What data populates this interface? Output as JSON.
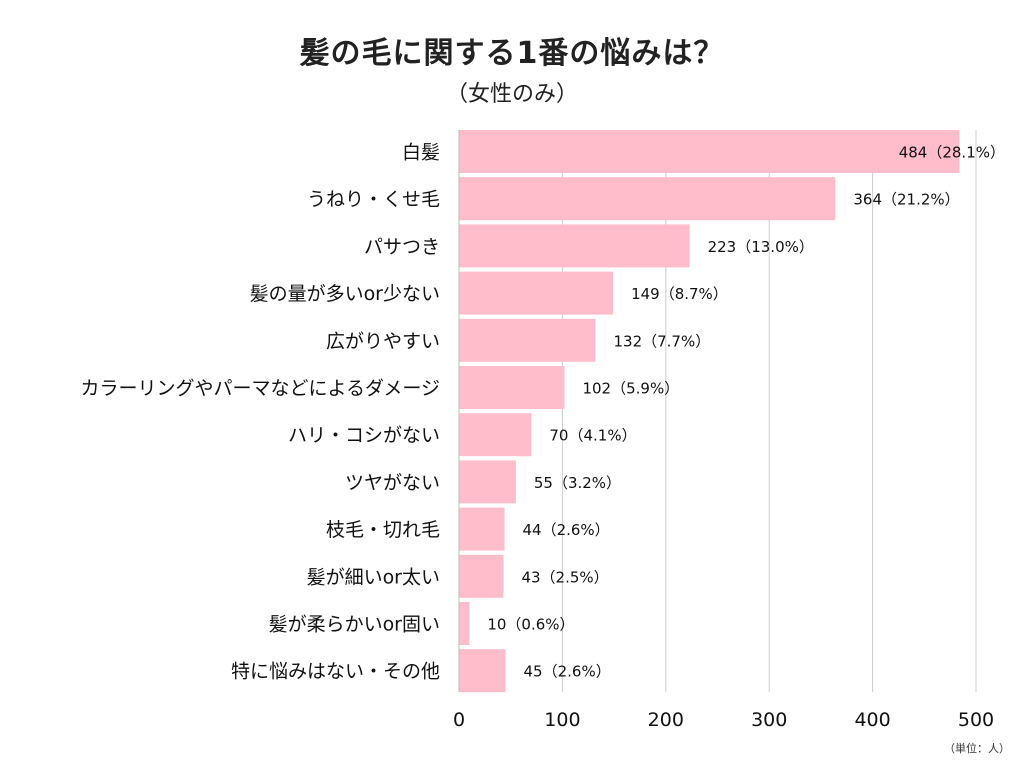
{
  "chart_data": {
    "type": "bar",
    "orientation": "horizontal",
    "title": "髪の毛に関する1番の悩みは？",
    "subtitle": "（女性のみ）",
    "unit_note": "（単位：人）",
    "categories": [
      "白髪",
      "うねり・くせ毛",
      "パサつき",
      "髪の量が多いor少ない",
      "広がりやすい",
      "カラーリングやパーマなどによるダメージ",
      "ハリ・コシがない",
      "ツヤがない",
      "枝毛・切れ毛",
      "髪が細いor太い",
      "髪が柔らかいor固い",
      "特に悩みはない・その他"
    ],
    "values": [
      484,
      364,
      223,
      149,
      132,
      102,
      70,
      55,
      44,
      43,
      10,
      45
    ],
    "data_labels": [
      "484（28.1%）",
      "364（21.2%）",
      "223（13.0%）",
      "149（8.7%）",
      "132（7.7%）",
      "102（5.9%）",
      "70（4.1%）",
      "55（3.2%）",
      "44（2.6%）",
      "43（2.5%）",
      "10（0.6%）",
      "45（2.6%）"
    ],
    "x_ticks": [
      "0",
      "100",
      "200",
      "300",
      "400",
      "500"
    ],
    "xlim": [
      0,
      500
    ],
    "grid": "vertical",
    "bar_color": "#ffbccb",
    "grid_color": "#cccccc"
  }
}
